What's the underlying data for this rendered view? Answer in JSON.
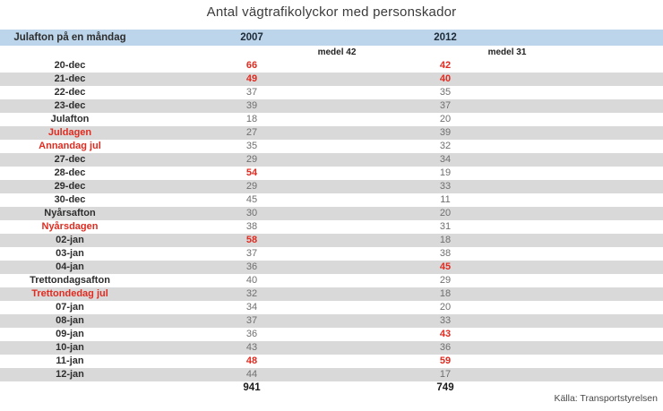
{
  "title": "Antal vägtrafikolyckor med personskador",
  "table": {
    "header": {
      "label": "Julafton på en måndag",
      "year_left": "2007",
      "year_right": "2012"
    },
    "subheader": {
      "mean_left": "medel 42",
      "mean_right": "medel 31"
    },
    "rows": [
      {
        "label": "20-dec",
        "v2007": "66",
        "v2012": "42",
        "hl_label": false,
        "hl_2007": true,
        "hl_2012": true
      },
      {
        "label": "21-dec",
        "v2007": "49",
        "v2012": "40",
        "hl_label": false,
        "hl_2007": true,
        "hl_2012": true
      },
      {
        "label": "22-dec",
        "v2007": "37",
        "v2012": "35",
        "hl_label": false,
        "hl_2007": false,
        "hl_2012": false
      },
      {
        "label": "23-dec",
        "v2007": "39",
        "v2012": "37",
        "hl_label": false,
        "hl_2007": false,
        "hl_2012": false
      },
      {
        "label": "Julafton",
        "v2007": "18",
        "v2012": "20",
        "hl_label": false,
        "hl_2007": false,
        "hl_2012": false
      },
      {
        "label": "Juldagen",
        "v2007": "27",
        "v2012": "39",
        "hl_label": true,
        "hl_2007": false,
        "hl_2012": false
      },
      {
        "label": "Annandag jul",
        "v2007": "35",
        "v2012": "32",
        "hl_label": true,
        "hl_2007": false,
        "hl_2012": false
      },
      {
        "label": "27-dec",
        "v2007": "29",
        "v2012": "34",
        "hl_label": false,
        "hl_2007": false,
        "hl_2012": false
      },
      {
        "label": "28-dec",
        "v2007": "54",
        "v2012": "19",
        "hl_label": false,
        "hl_2007": true,
        "hl_2012": false
      },
      {
        "label": "29-dec",
        "v2007": "29",
        "v2012": "33",
        "hl_label": false,
        "hl_2007": false,
        "hl_2012": false
      },
      {
        "label": "30-dec",
        "v2007": "45",
        "v2012": "11",
        "hl_label": false,
        "hl_2007": false,
        "hl_2012": false
      },
      {
        "label": "Nyårsafton",
        "v2007": "30",
        "v2012": "20",
        "hl_label": false,
        "hl_2007": false,
        "hl_2012": false
      },
      {
        "label": "Nyårsdagen",
        "v2007": "38",
        "v2012": "31",
        "hl_label": true,
        "hl_2007": false,
        "hl_2012": false
      },
      {
        "label": "02-jan",
        "v2007": "58",
        "v2012": "18",
        "hl_label": false,
        "hl_2007": true,
        "hl_2012": false
      },
      {
        "label": "03-jan",
        "v2007": "37",
        "v2012": "38",
        "hl_label": false,
        "hl_2007": false,
        "hl_2012": false
      },
      {
        "label": "04-jan",
        "v2007": "36",
        "v2012": "45",
        "hl_label": false,
        "hl_2007": false,
        "hl_2012": true
      },
      {
        "label": "Trettondagsafton",
        "v2007": "40",
        "v2012": "29",
        "hl_label": false,
        "hl_2007": false,
        "hl_2012": false
      },
      {
        "label": "Trettondedag jul",
        "v2007": "32",
        "v2012": "18",
        "hl_label": true,
        "hl_2007": false,
        "hl_2012": false
      },
      {
        "label": "07-jan",
        "v2007": "34",
        "v2012": "20",
        "hl_label": false,
        "hl_2007": false,
        "hl_2012": false
      },
      {
        "label": "08-jan",
        "v2007": "37",
        "v2012": "33",
        "hl_label": false,
        "hl_2007": false,
        "hl_2012": false
      },
      {
        "label": "09-jan",
        "v2007": "36",
        "v2012": "43",
        "hl_label": false,
        "hl_2007": false,
        "hl_2012": true
      },
      {
        "label": "10-jan",
        "v2007": "43",
        "v2012": "36",
        "hl_label": false,
        "hl_2007": false,
        "hl_2012": false
      },
      {
        "label": "11-jan",
        "v2007": "48",
        "v2012": "59",
        "hl_label": false,
        "hl_2007": true,
        "hl_2012": true
      },
      {
        "label": "12-jan",
        "v2007": "44",
        "v2012": "17",
        "hl_label": false,
        "hl_2007": false,
        "hl_2012": false
      }
    ],
    "totals": {
      "total_2007": "941",
      "total_2012": "749"
    }
  },
  "source": "Källa: Transportstyrelsen",
  "colors": {
    "header_bg": "#bcd5ea",
    "stripe": "#d9d9d9",
    "highlight_red": "#e02b20",
    "value_gray": "#6f6f6f",
    "label_dark": "#2e2e2e"
  },
  "chart_data": {
    "type": "table",
    "title": "Antal vägtrafikolyckor med personskador",
    "categories": [
      "20-dec",
      "21-dec",
      "22-dec",
      "23-dec",
      "Julafton",
      "Juldagen",
      "Annandag jul",
      "27-dec",
      "28-dec",
      "29-dec",
      "30-dec",
      "Nyårsafton",
      "Nyårsdagen",
      "02-jan",
      "03-jan",
      "04-jan",
      "Trettondagsafton",
      "Trettondedag jul",
      "07-jan",
      "08-jan",
      "09-jan",
      "10-jan",
      "11-jan",
      "12-jan"
    ],
    "series": [
      {
        "name": "2007",
        "mean_label": "medel 42",
        "values": [
          66,
          49,
          37,
          39,
          18,
          27,
          35,
          29,
          54,
          29,
          45,
          30,
          38,
          58,
          37,
          36,
          40,
          32,
          34,
          37,
          36,
          43,
          48,
          44
        ],
        "total": 941,
        "highlighted_values": [
          66,
          49,
          54,
          58,
          48
        ]
      },
      {
        "name": "2012",
        "mean_label": "medel 31",
        "values": [
          42,
          40,
          35,
          37,
          20,
          39,
          32,
          34,
          19,
          33,
          11,
          20,
          31,
          18,
          38,
          45,
          29,
          18,
          20,
          33,
          43,
          36,
          59,
          17
        ],
        "total": 749,
        "highlighted_values": [
          42,
          40,
          45,
          43,
          59
        ]
      }
    ],
    "highlighted_categories": [
      "Juldagen",
      "Annandag jul",
      "Nyårsdagen",
      "Trettondedag jul"
    ],
    "source": "Källa: Transportstyrelsen",
    "layout": "striped rows, first column row labels, red bold = highlighted values/holidays"
  }
}
